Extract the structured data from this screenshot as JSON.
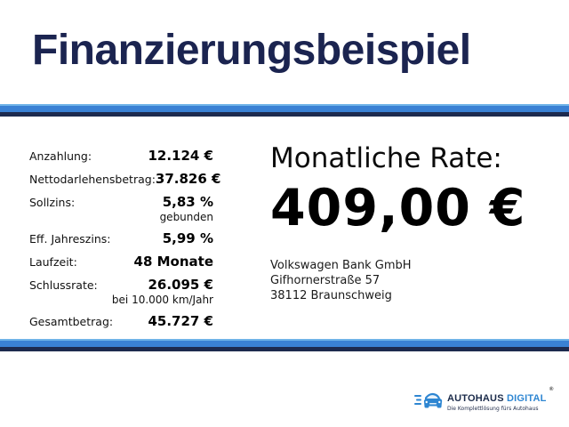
{
  "title": "Finanzierungsbeispiel",
  "colors": {
    "title_navy": "#1b2450",
    "divider_light_blue": "#6fb3e8",
    "divider_blue": "#3a81d4",
    "divider_navy": "#1d2a4e",
    "logo_blue": "#2e86d2",
    "text_black": "#000000"
  },
  "finance_table": {
    "rows": [
      {
        "label": "Anzahlung:",
        "value": "12.124 €",
        "note": ""
      },
      {
        "label": "Nettodarlehensbetrag:",
        "value": "37.826 €",
        "note": ""
      },
      {
        "label": "Sollzins:",
        "value": "5,83 %",
        "note": "gebunden"
      },
      {
        "label": "Eff. Jahreszins:",
        "value": "5,99 %",
        "note": ""
      },
      {
        "label": "Laufzeit:",
        "value": "48 Monate",
        "note": ""
      },
      {
        "label": "Schlussrate:",
        "value": "26.095 €",
        "note": "bei 10.000 km/Jahr"
      },
      {
        "label": "Gesamtbetrag:",
        "value": "45.727 €",
        "note": ""
      }
    ]
  },
  "rate": {
    "heading": "Monatliche Rate:",
    "amount": "409,00 €"
  },
  "bank_address": {
    "line1": "Volkswagen Bank GmbH",
    "line2": "Gifhornerstraße 57",
    "line3": "38112 Braunschweig"
  },
  "logo": {
    "name_part1": "AUTOHAUS",
    "name_part2": "DIGITAL",
    "registered": "®",
    "tagline": "Die Komplettlösung fürs Autohaus",
    "car_icon": "car-front-speed-lines-icon"
  }
}
